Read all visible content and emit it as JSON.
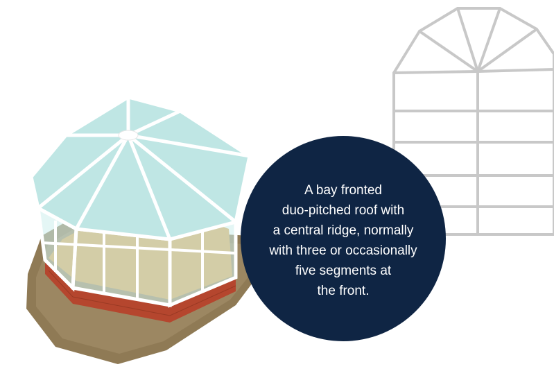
{
  "description_lines": [
    "A bay fronted",
    "duo-pitched roof with",
    "a central ridge, normally",
    "with three or occasionally",
    "five segments at",
    "the front."
  ],
  "colors": {
    "circle_background": "#0f2544",
    "circle_text": "#ffffff",
    "plan_outline": "#c8c8c8",
    "glass": "#bfe6e4",
    "frame": "#ffffff",
    "floor": "#d9a552",
    "brick": "#b5462e",
    "ground": "#8f7a55"
  }
}
